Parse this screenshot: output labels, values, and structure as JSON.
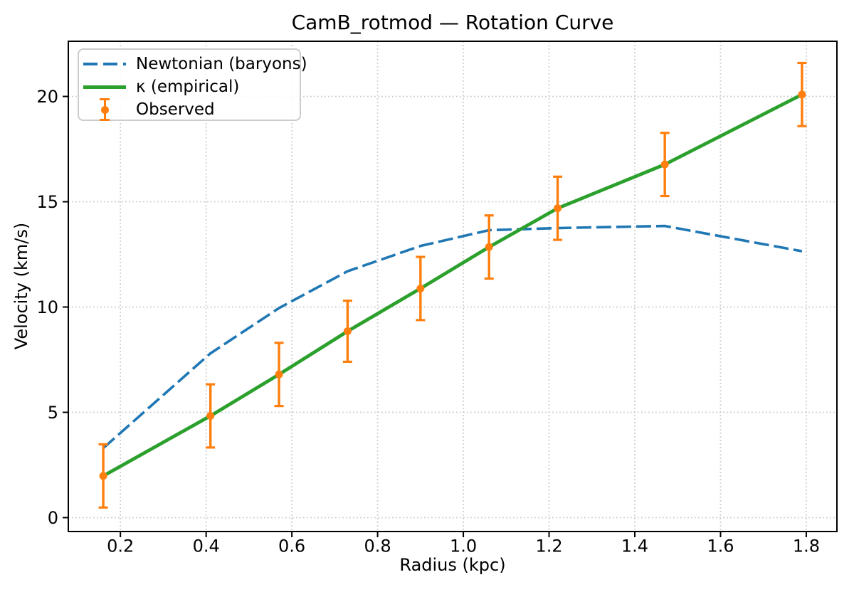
{
  "chart_data": {
    "type": "line",
    "title": "CamB_rotmod — Rotation Curve",
    "xlabel": "Radius (kpc)",
    "ylabel": "Velocity (km/s)",
    "xlim": [
      0.0785,
      1.8715
    ],
    "ylim": [
      -0.66,
      22.62
    ],
    "xticks": [
      0.2,
      0.4,
      0.6,
      0.8,
      1.0,
      1.2,
      1.4,
      1.6,
      1.8
    ],
    "xtick_labels": [
      "0.2",
      "0.4",
      "0.6",
      "0.8",
      "1.0",
      "1.2",
      "1.4",
      "1.6",
      "1.8"
    ],
    "yticks": [
      0,
      5,
      10,
      15,
      20
    ],
    "ytick_labels": [
      "0",
      "5",
      "10",
      "15",
      "20"
    ],
    "grid": true,
    "grid_style": "dotted",
    "grid_color": "#cccccc",
    "axis_color": "#000000",
    "background_color": "#ffffff",
    "legend_position": "upper left",
    "x": [
      0.16,
      0.41,
      0.57,
      0.73,
      0.9,
      1.06,
      1.22,
      1.47,
      1.79
    ],
    "series": [
      {
        "name": "Newtonian (baryons)",
        "type": "line",
        "line_style": "dashed",
        "color": "#1f77b4",
        "values": [
          3.3,
          7.8,
          9.95,
          11.7,
          12.9,
          13.65,
          13.75,
          13.85,
          12.65
        ]
      },
      {
        "name": "κ (empirical)",
        "type": "line",
        "line_style": "solid",
        "color": "#2ca02c",
        "values": [
          1.98,
          4.83,
          6.8,
          8.85,
          10.88,
          12.85,
          14.69,
          16.77,
          20.09
        ]
      },
      {
        "name": "Observed",
        "type": "errorbar",
        "marker": "circle",
        "color": "#ff7f0e",
        "values": [
          1.98,
          4.83,
          6.8,
          8.85,
          10.88,
          12.85,
          14.69,
          16.77,
          20.09
        ],
        "yerr": [
          1.5,
          1.5,
          1.5,
          1.45,
          1.5,
          1.5,
          1.5,
          1.5,
          1.5
        ]
      }
    ]
  }
}
